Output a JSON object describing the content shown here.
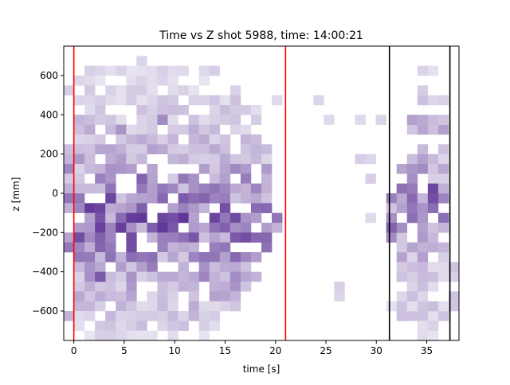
{
  "chart_data": {
    "type": "heatmap",
    "title": "Time vs Z shot 5988, time: 14:00:21",
    "xlabel": "time [s]",
    "ylabel": "z [mm]",
    "xlim": [
      -1,
      38.2
    ],
    "ylim": [
      -750,
      750
    ],
    "x_ticks": [
      0,
      5,
      10,
      15,
      20,
      25,
      30,
      35
    ],
    "x_tick_labels": [
      "0",
      "5",
      "10",
      "15",
      "20",
      "25",
      "30",
      "35"
    ],
    "y_ticks": [
      600,
      400,
      200,
      0,
      -200,
      -400,
      -600
    ],
    "y_tick_labels": [
      "600",
      "400",
      "200",
      "0",
      "−200",
      "−400",
      "−600"
    ],
    "grid": false,
    "colormap": "Purples",
    "bin_x": [
      -1,
      38.2,
      38
    ],
    "bin_y": [
      -750,
      750,
      30
    ],
    "active_rows": [
      {
        "ylo": 600,
        "yhi": 650,
        "xlo": 1,
        "xhi": 14,
        "lvl": 0.12
      },
      {
        "ylo": 550,
        "yhi": 600,
        "xlo": 0,
        "xhi": 14,
        "lvl": 0.12
      },
      {
        "ylo": 500,
        "yhi": 550,
        "xlo": 0,
        "xhi": 16,
        "lvl": 0.15
      },
      {
        "ylo": 450,
        "yhi": 500,
        "xlo": -1,
        "xhi": 16,
        "lvl": 0.18
      },
      {
        "ylo": 400,
        "yhi": 450,
        "xlo": 0,
        "xhi": 18,
        "lvl": 0.2
      },
      {
        "ylo": 350,
        "yhi": 400,
        "xlo": 0,
        "xhi": 18,
        "lvl": 0.22
      },
      {
        "ylo": 300,
        "yhi": 350,
        "xlo": 0,
        "xhi": 18,
        "lvl": 0.25
      },
      {
        "ylo": 250,
        "yhi": 300,
        "xlo": 0,
        "xhi": 18,
        "lvl": 0.28
      },
      {
        "ylo": 200,
        "yhi": 250,
        "xlo": -1,
        "xhi": 19,
        "lvl": 0.3
      },
      {
        "ylo": 150,
        "yhi": 200,
        "xlo": -1,
        "xhi": 19,
        "lvl": 0.32
      },
      {
        "ylo": 100,
        "yhi": 150,
        "xlo": -1,
        "xhi": 19,
        "lvl": 0.38
      },
      {
        "ylo": 50,
        "yhi": 100,
        "xlo": -1,
        "xhi": 19,
        "lvl": 0.45
      },
      {
        "ylo": 0,
        "yhi": 50,
        "xlo": -1,
        "xhi": 19,
        "lvl": 0.52
      },
      {
        "ylo": -50,
        "yhi": 0,
        "xlo": -1,
        "xhi": 19,
        "lvl": 0.58
      },
      {
        "ylo": -100,
        "yhi": -50,
        "xlo": -1,
        "xhi": 19,
        "lvl": 0.68
      },
      {
        "ylo": -150,
        "yhi": -100,
        "xlo": -1,
        "xhi": 20,
        "lvl": 0.72
      },
      {
        "ylo": -200,
        "yhi": -150,
        "xlo": -1,
        "xhi": 20,
        "lvl": 0.7
      },
      {
        "ylo": -250,
        "yhi": -200,
        "xlo": -1,
        "xhi": 19,
        "lvl": 0.62
      },
      {
        "ylo": -300,
        "yhi": -250,
        "xlo": -1,
        "xhi": 19,
        "lvl": 0.55
      },
      {
        "ylo": -350,
        "yhi": -300,
        "xlo": 0,
        "xhi": 18,
        "lvl": 0.5
      },
      {
        "ylo": -400,
        "yhi": -350,
        "xlo": 0,
        "xhi": 18,
        "lvl": 0.45
      },
      {
        "ylo": -450,
        "yhi": -400,
        "xlo": 0,
        "xhi": 18,
        "lvl": 0.4
      },
      {
        "ylo": -500,
        "yhi": -450,
        "xlo": 0,
        "xhi": 17,
        "lvl": 0.35
      },
      {
        "ylo": -550,
        "yhi": -500,
        "xlo": 0,
        "xhi": 16,
        "lvl": 0.3
      },
      {
        "ylo": -600,
        "yhi": -550,
        "xlo": 0,
        "xhi": 16,
        "lvl": 0.25
      },
      {
        "ylo": -650,
        "yhi": -600,
        "xlo": 0,
        "xhi": 15,
        "lvl": 0.22
      },
      {
        "ylo": -700,
        "yhi": -650,
        "xlo": 0,
        "xhi": 14,
        "lvl": 0.18
      },
      {
        "ylo": -750,
        "yhi": -700,
        "xlo": 1,
        "xhi": 13,
        "lvl": 0.12
      },
      {
        "ylo": 600,
        "yhi": 650,
        "xlo": 34,
        "xhi": 36,
        "lvl": 0.15
      },
      {
        "ylo": 450,
        "yhi": 550,
        "xlo": 34,
        "xhi": 37,
        "lvl": 0.2
      },
      {
        "ylo": 300,
        "yhi": 400,
        "xlo": 33,
        "xhi": 37,
        "lvl": 0.32
      },
      {
        "ylo": 150,
        "yhi": 250,
        "xlo": 33,
        "xhi": 37,
        "lvl": 0.3
      },
      {
        "ylo": 50,
        "yhi": 150,
        "xlo": 32,
        "xhi": 37,
        "lvl": 0.4
      },
      {
        "ylo": -50,
        "yhi": 50,
        "xlo": 31,
        "xhi": 37,
        "lvl": 0.55
      },
      {
        "ylo": -150,
        "yhi": -50,
        "xlo": 31,
        "xhi": 37,
        "lvl": 0.5
      },
      {
        "ylo": -250,
        "yhi": -150,
        "xlo": 31,
        "xhi": 37,
        "lvl": 0.45
      },
      {
        "ylo": -350,
        "yhi": -250,
        "xlo": 32,
        "xhi": 37,
        "lvl": 0.3
      },
      {
        "ylo": -500,
        "yhi": -350,
        "xlo": 32,
        "xhi": 38,
        "lvl": 0.22
      },
      {
        "ylo": -650,
        "yhi": -500,
        "xlo": 31,
        "xhi": 38,
        "lvl": 0.18
      },
      {
        "ylo": -750,
        "yhi": -650,
        "xlo": 34,
        "xhi": 36,
        "lvl": 0.12
      }
    ],
    "isolated_cells": [
      {
        "x": 0,
        "y": 500,
        "v": 0.15
      },
      {
        "x": 7,
        "y": 650,
        "v": 0.12
      },
      {
        "x": 14,
        "y": 600,
        "v": 0.15
      },
      {
        "x": 24.5,
        "y": 450,
        "v": 0.12
      },
      {
        "x": 20.5,
        "y": 450,
        "v": 0.1
      },
      {
        "x": 25.5,
        "y": 350,
        "v": 0.1
      },
      {
        "x": 28.5,
        "y": 350,
        "v": 0.1
      },
      {
        "x": 30.5,
        "y": 350,
        "v": 0.12
      },
      {
        "x": 28.5,
        "y": 150,
        "v": 0.15
      },
      {
        "x": 29.5,
        "y": 150,
        "v": 0.12
      },
      {
        "x": 29.5,
        "y": 50,
        "v": 0.15
      },
      {
        "x": 29.5,
        "y": -150,
        "v": 0.1
      },
      {
        "x": 26.5,
        "y": -500,
        "v": 0.15
      },
      {
        "x": 26.5,
        "y": -550,
        "v": 0.12
      },
      {
        "x": 37.5,
        "y": -450,
        "v": 0.15
      },
      {
        "x": 37.5,
        "y": -550,
        "v": 0.2
      },
      {
        "x": 37.5,
        "y": -600,
        "v": 0.12
      },
      {
        "x": 0,
        "y": -650,
        "v": 0.3
      },
      {
        "x": 2.5,
        "y": -100,
        "v": 0.85
      },
      {
        "x": 3.5,
        "y": -50,
        "v": 0.85
      },
      {
        "x": 4.5,
        "y": -200,
        "v": 0.8
      },
      {
        "x": 5.5,
        "y": -300,
        "v": 0.8
      },
      {
        "x": 6.5,
        "y": -150,
        "v": 0.8
      },
      {
        "x": 9.5,
        "y": -150,
        "v": 0.8
      },
      {
        "x": 11.5,
        "y": -50,
        "v": 0.65
      },
      {
        "x": 2.5,
        "y": -450,
        "v": 0.75
      },
      {
        "x": 35.5,
        "y": 0,
        "v": 0.85
      },
      {
        "x": 35.5,
        "y": -50,
        "v": 0.8
      },
      {
        "x": 31.5,
        "y": -200,
        "v": 0.7
      },
      {
        "x": 6.5,
        "y": 50,
        "v": 0.7
      },
      {
        "x": 4.5,
        "y": 300,
        "v": 0.45
      },
      {
        "x": 8.5,
        "y": 350,
        "v": 0.5
      }
    ],
    "vertical_lines": [
      {
        "x": 0,
        "color": "#ff0000"
      },
      {
        "x": 21,
        "color": "#ff0000"
      },
      {
        "x": 31.3,
        "color": "#000000"
      },
      {
        "x": 37.3,
        "color": "#000000"
      }
    ]
  }
}
